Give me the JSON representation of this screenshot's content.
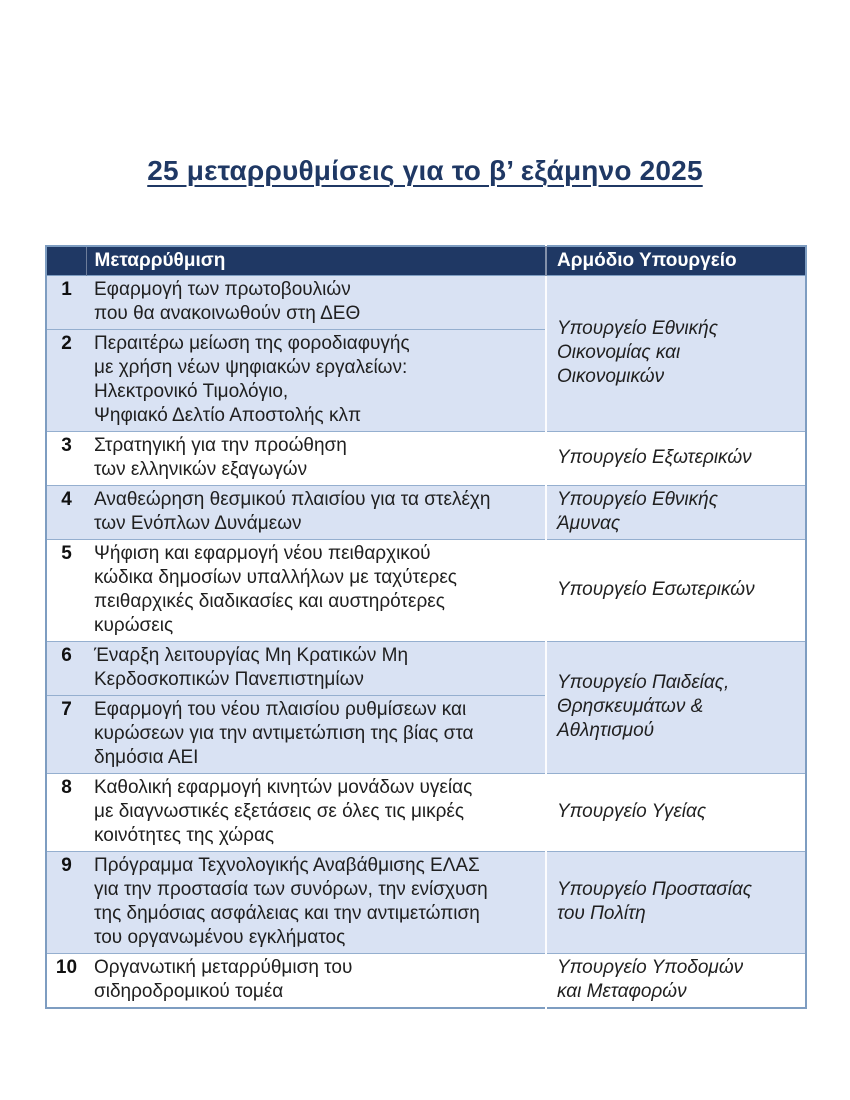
{
  "page": {
    "title": "25 μεταρρυθμίσεις για το β’ εξάμηνο 2025"
  },
  "colors": {
    "title": "#1f3864",
    "header_bg": "#1f3864",
    "header_text": "#ffffff",
    "band_bg": "#d9e2f3",
    "row_bg": "#ffffff",
    "border": "#7e9dc1"
  },
  "table": {
    "headers": {
      "number": "",
      "reform": "Μεταρρύθμιση",
      "ministry": "Αρμόδιο Υπουργείο"
    },
    "rows": [
      {
        "num": "1",
        "reform": "Εφαρμογή των πρωτοβουλιών\nπου θα ανακοινωθούν στη ΔΕΘ",
        "ministry": "Υπουργείο Εθνικής\nΟικονομίας και\nΟικονομικών"
      },
      {
        "num": "2",
        "reform": "Περαιτέρω μείωση της φοροδιαφυγής\nμε χρήση νέων ψηφιακών εργαλείων:\nΗλεκτρονικό Τιμολόγιο,\nΨηφιακό Δελτίο Αποστολής κλπ"
      },
      {
        "num": "3",
        "reform": "Στρατηγική για την προώθηση\nτων ελληνικών εξαγωγών",
        "ministry": "Υπουργείο Εξωτερικών"
      },
      {
        "num": "4",
        "reform": "Αναθεώρηση θεσμικού πλαισίου για τα στελέχη\nτων Ενόπλων Δυνάμεων",
        "ministry": "Υπουργείο Εθνικής\nΆμυνας"
      },
      {
        "num": "5",
        "reform": "Ψήφιση και εφαρμογή νέου πειθαρχικού\nκώδικα δημοσίων υπαλλήλων με ταχύτερες\nπειθαρχικές διαδικασίες και αυστηρότερες\nκυρώσεις",
        "ministry": "Υπουργείο Εσωτερικών"
      },
      {
        "num": "6",
        "reform": "Έναρξη λειτουργίας Μη Κρατικών Μη\nΚερδοσκοπικών Πανεπιστημίων",
        "ministry": "Υπουργείο Παιδείας,\nΘρησκευμάτων &\nΑθλητισμού"
      },
      {
        "num": "7",
        "reform": "Εφαρμογή του νέου πλαισίου ρυθμίσεων και\nκυρώσεων για την αντιμετώπιση της βίας στα\nδημόσια ΑΕΙ"
      },
      {
        "num": "8",
        "reform": "Καθολική εφαρμογή κινητών μονάδων υγείας\nμε διαγνωστικές εξετάσεις σε όλες τις μικρές\nκοινότητες της χώρας",
        "ministry": "Υπουργείο Υγείας"
      },
      {
        "num": "9",
        "reform": "Πρόγραμμα Τεχνολογικής Αναβάθμισης ΕΛΑΣ\nγια την προστασία των συνόρων, την ενίσχυση\nτης δημόσιας ασφάλειας και την αντιμετώπιση\nτου οργανωμένου εγκλήματος",
        "ministry": "Υπουργείο Προστασίας\nτου Πολίτη"
      },
      {
        "num": "10",
        "reform": "Οργανωτική μεταρρύθμιση του\nσιδηροδρομικού τομέα",
        "ministry": "Υπουργείο Υποδομών\nκαι Μεταφορών"
      }
    ]
  }
}
